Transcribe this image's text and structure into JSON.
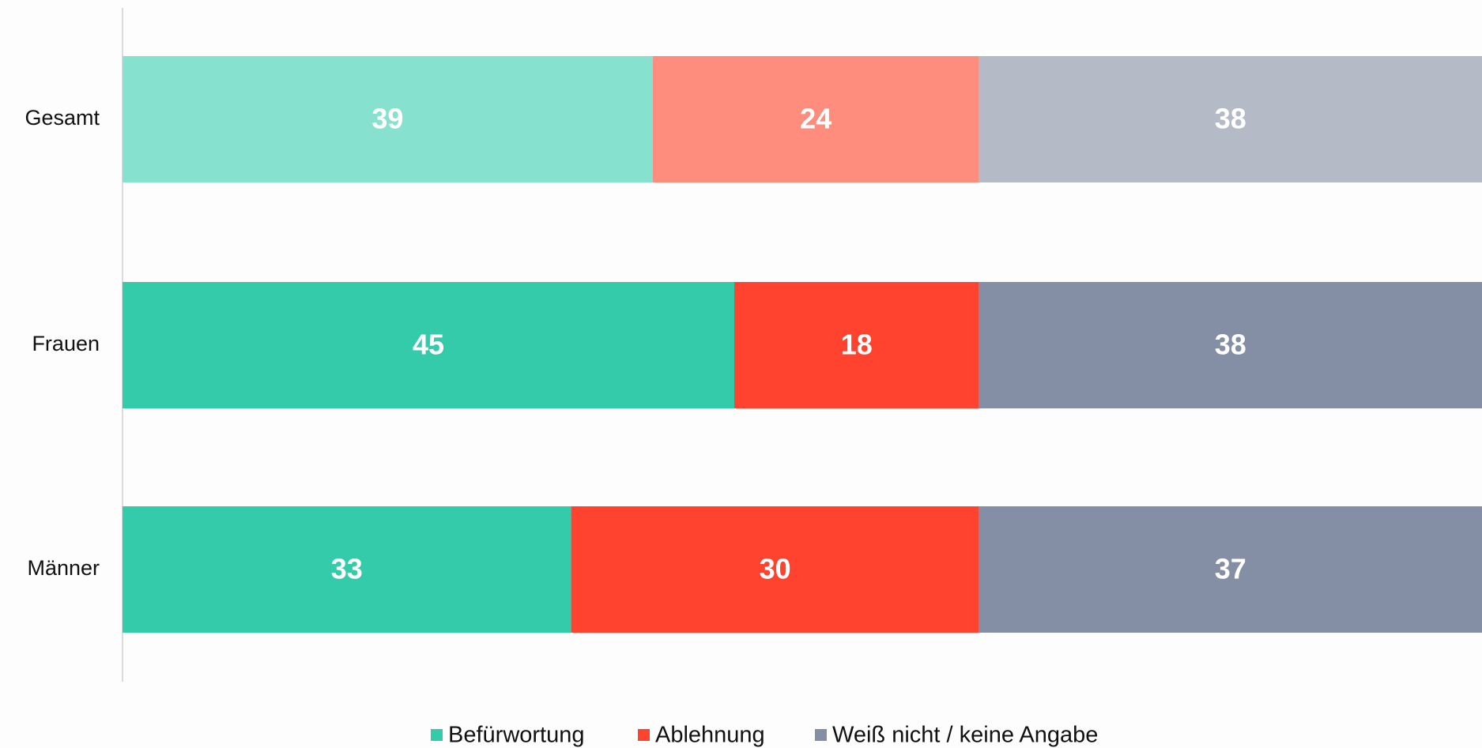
{
  "chart_data": {
    "type": "stacked-barh",
    "categories": [
      "Gesamt",
      "Frauen",
      "Männer"
    ],
    "series": [
      {
        "name": "Befürwortung",
        "color": "#33cbaa",
        "colors": [
          "#86e2cf",
          "#33cbaa",
          "#33cbaa"
        ],
        "values": [
          39,
          45,
          33
        ]
      },
      {
        "name": "Ablehnung",
        "color": "#ff432e",
        "colors": [
          "#ff8d7e",
          "#ff432e",
          "#ff432e"
        ],
        "values": [
          24,
          18,
          30
        ]
      },
      {
        "name": "Weiß nicht / keine Angabe",
        "color": "#848ea5",
        "colors": [
          "#b5bac7",
          "#848ea5",
          "#848ea5"
        ],
        "values": [
          38,
          38,
          37
        ]
      }
    ],
    "xlim": [
      0,
      100
    ],
    "legend": "bottom"
  }
}
